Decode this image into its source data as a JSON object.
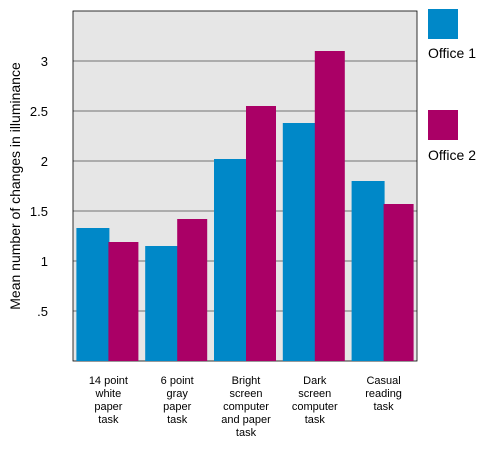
{
  "chart_data": {
    "type": "bar",
    "ylabel": "Mean number of changes in illuminance",
    "xlabel": "",
    "ylim": [
      0,
      3.5
    ],
    "yticks": [
      ".5",
      "1",
      "1.5",
      "2",
      "2.5",
      "3"
    ],
    "grid": true,
    "legend_position": "right",
    "categories": [
      "14 point white paper task",
      "6 point gray paper task",
      "Bright screen computer and paper task",
      "Dark screen computer task",
      "Casual reading task"
    ],
    "category_lines": [
      [
        "14 point",
        "white",
        "paper",
        "task"
      ],
      [
        "6 point",
        "gray",
        "paper",
        "task"
      ],
      [
        "Bright",
        "screen",
        "computer",
        "and paper",
        "task"
      ],
      [
        "Dark",
        "screen",
        "computer",
        "task"
      ],
      [
        "Casual",
        "reading",
        "task"
      ]
    ],
    "series": [
      {
        "name": "Office 1",
        "color": "#0088c8",
        "values": [
          1.33,
          1.15,
          2.02,
          2.38,
          1.8
        ]
      },
      {
        "name": "Office 2",
        "color": "#aa0066",
        "values": [
          1.19,
          1.42,
          2.55,
          3.1,
          1.57
        ]
      }
    ],
    "plot_background": "#e6e6e6"
  }
}
